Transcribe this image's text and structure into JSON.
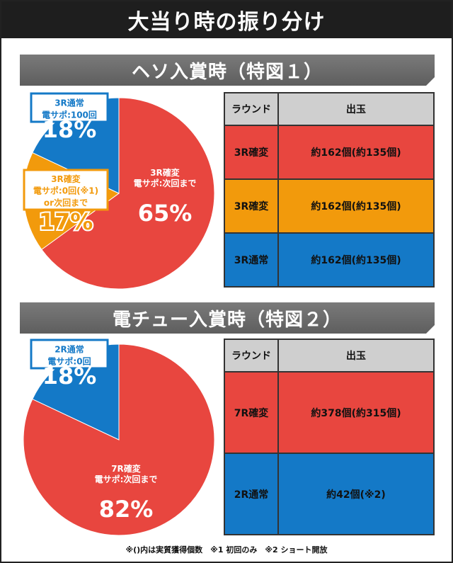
{
  "title": "大当り時の振り分け",
  "colors": {
    "red": "#e8463f",
    "orange": "#f29a0c",
    "blue": "#1479c7",
    "header_gray": "#cfcfcf"
  },
  "sections": [
    {
      "heading": "ヘソ入賞時（特図１）",
      "chart_data": {
        "type": "pie",
        "title": "ヘソ入賞時（特図１）",
        "slices": [
          {
            "label_line1": "3R確変",
            "label_line2": "電サポ:次回まで",
            "label_line3": "",
            "percent_text": "65%",
            "value": 65,
            "color": "#e8463f"
          },
          {
            "label_line1": "3R確変",
            "label_line2": "電サポ:0回(※1)",
            "label_line3": "or次回まで",
            "percent_text": "17%",
            "value": 17,
            "color": "#f29a0c"
          },
          {
            "label_line1": "3R通常",
            "label_line2": "電サポ:100回",
            "label_line3": "",
            "percent_text": "18%",
            "value": 18,
            "color": "#1479c7"
          }
        ]
      },
      "table": {
        "header_round": "ラウンド",
        "header_payout": "出玉",
        "rows": [
          {
            "round": "3R確変",
            "payout": "約162個(約135個)",
            "color": "#e8463f"
          },
          {
            "round": "3R確変",
            "payout": "約162個(約135個)",
            "color": "#f29a0c"
          },
          {
            "round": "3R通常",
            "payout": "約162個(約135個)",
            "color": "#1479c7"
          }
        ]
      }
    },
    {
      "heading": "電チュー入賞時（特図２）",
      "chart_data": {
        "type": "pie",
        "title": "電チュー入賞時（特図２）",
        "slices": [
          {
            "label_line1": "7R確変",
            "label_line2": "電サポ:次回まで",
            "label_line3": "",
            "percent_text": "82%",
            "value": 82,
            "color": "#e8463f"
          },
          {
            "label_line1": "2R通常",
            "label_line2": "電サポ:0回",
            "label_line3": "",
            "percent_text": "18%",
            "value": 18,
            "color": "#1479c7"
          }
        ]
      },
      "table": {
        "header_round": "ラウンド",
        "header_payout": "出玉",
        "rows": [
          {
            "round": "7R確変",
            "payout": "約378個(約315個)",
            "color": "#e8463f"
          },
          {
            "round": "2R通常",
            "payout": "約42個(※2)",
            "color": "#1479c7"
          }
        ]
      }
    }
  ],
  "footnote": "※()内は実質獲得個数　※1 初回のみ　※2 ショート開放"
}
